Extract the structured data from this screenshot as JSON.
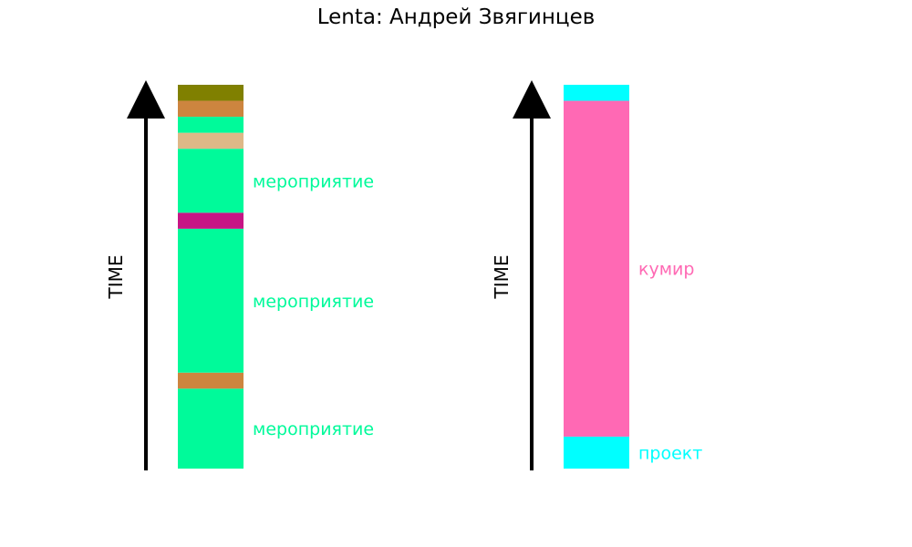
{
  "title": "Lenta: Андрей Звягинцев",
  "chart_data": [
    {
      "type": "bar",
      "axis_label": "TIME",
      "y_range": [
        0,
        24
      ],
      "segments": [
        {
          "start": 0,
          "end": 5,
          "color": "#00fa9a",
          "label": "мероприятие"
        },
        {
          "start": 5,
          "end": 6,
          "color": "#cd853f",
          "label": ""
        },
        {
          "start": 6,
          "end": 15,
          "color": "#00fa9a",
          "label": "мероприятие"
        },
        {
          "start": 15,
          "end": 16,
          "color": "#c71585",
          "label": ""
        },
        {
          "start": 16,
          "end": 20,
          "color": "#00fa9a",
          "label": "мероприятие"
        },
        {
          "start": 20,
          "end": 21,
          "color": "#deb887",
          "label": ""
        },
        {
          "start": 21,
          "end": 22,
          "color": "#00fa9a",
          "label": ""
        },
        {
          "start": 22,
          "end": 23,
          "color": "#cd853f",
          "label": ""
        },
        {
          "start": 23,
          "end": 24,
          "color": "#808000",
          "label": ""
        }
      ]
    },
    {
      "type": "bar",
      "axis_label": "TIME",
      "y_range": [
        0,
        24
      ],
      "segments": [
        {
          "start": 0,
          "end": 2,
          "color": "#00ffff",
          "label": "проект"
        },
        {
          "start": 2,
          "end": 23,
          "color": "#ff69b4",
          "label": "кумир"
        },
        {
          "start": 23,
          "end": 24,
          "color": "#00ffff",
          "label": ""
        }
      ]
    }
  ]
}
